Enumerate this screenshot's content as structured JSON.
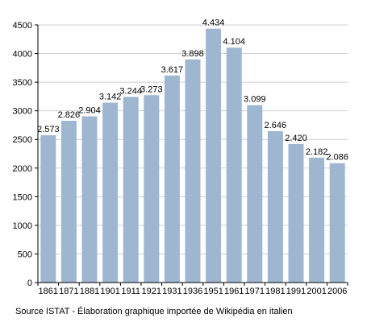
{
  "chart_data": {
    "type": "bar",
    "categories": [
      "1861",
      "1871",
      "1881",
      "1901",
      "1911",
      "1921",
      "1931",
      "1936",
      "1951",
      "1961",
      "1971",
      "1981",
      "1991",
      "2001",
      "2006"
    ],
    "values": [
      2573,
      2826,
      2904,
      3142,
      3244,
      3273,
      3617,
      3898,
      4434,
      4104,
      3099,
      2646,
      2420,
      2182,
      2086
    ],
    "data_labels": [
      "2.573",
      "2.826",
      "2.904",
      "3.142",
      "3.244",
      "3.273",
      "3.617",
      "3.898",
      "4.434",
      "4.104",
      "3.099",
      "2.646",
      "2.420",
      "2.182",
      "2.086"
    ],
    "y_ticks": [
      "0",
      "500",
      "1000",
      "1500",
      "2000",
      "2500",
      "3000",
      "3500",
      "4000",
      "4500"
    ],
    "ylim": [
      0,
      4500
    ],
    "grid": true,
    "bar_color": "#9fb6d1",
    "grid_color": "#cfcfcf"
  },
  "source_note": "Source ISTAT - Élaboration graphique importée de Wikipédia en italien"
}
